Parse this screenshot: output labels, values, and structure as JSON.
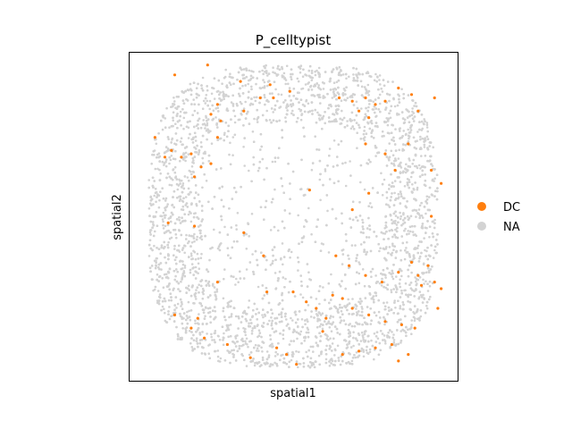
{
  "chart_data": {
    "type": "scatter",
    "title": "P_celltypist",
    "xlabel": "spatial1",
    "ylabel": "spatial2",
    "grid": false,
    "legend_placement": "right",
    "series": [
      {
        "name": "DC",
        "color": "#ff7f0e",
        "points": [
          [
            0.24,
            0.96
          ],
          [
            0.14,
            0.93
          ],
          [
            0.34,
            0.91
          ],
          [
            0.43,
            0.9
          ],
          [
            0.49,
            0.88
          ],
          [
            0.44,
            0.86
          ],
          [
            0.4,
            0.86
          ],
          [
            0.35,
            0.82
          ],
          [
            0.27,
            0.84
          ],
          [
            0.25,
            0.81
          ],
          [
            0.28,
            0.79
          ],
          [
            0.64,
            0.86
          ],
          [
            0.68,
            0.85
          ],
          [
            0.72,
            0.86
          ],
          [
            0.75,
            0.84
          ],
          [
            0.78,
            0.85
          ],
          [
            0.7,
            0.82
          ],
          [
            0.73,
            0.8
          ],
          [
            0.82,
            0.89
          ],
          [
            0.86,
            0.87
          ],
          [
            0.88,
            0.82
          ],
          [
            0.93,
            0.86
          ],
          [
            0.08,
            0.74
          ],
          [
            0.11,
            0.68
          ],
          [
            0.13,
            0.7
          ],
          [
            0.16,
            0.68
          ],
          [
            0.19,
            0.69
          ],
          [
            0.22,
            0.65
          ],
          [
            0.25,
            0.66
          ],
          [
            0.2,
            0.62
          ],
          [
            0.27,
            0.74
          ],
          [
            0.72,
            0.72
          ],
          [
            0.78,
            0.69
          ],
          [
            0.81,
            0.64
          ],
          [
            0.85,
            0.72
          ],
          [
            0.92,
            0.64
          ],
          [
            0.95,
            0.6
          ],
          [
            0.92,
            0.5
          ],
          [
            0.55,
            0.58
          ],
          [
            0.73,
            0.57
          ],
          [
            0.68,
            0.52
          ],
          [
            0.12,
            0.48
          ],
          [
            0.2,
            0.47
          ],
          [
            0.35,
            0.45
          ],
          [
            0.41,
            0.38
          ],
          [
            0.63,
            0.38
          ],
          [
            0.67,
            0.35
          ],
          [
            0.72,
            0.32
          ],
          [
            0.77,
            0.3
          ],
          [
            0.82,
            0.33
          ],
          [
            0.86,
            0.36
          ],
          [
            0.88,
            0.32
          ],
          [
            0.91,
            0.35
          ],
          [
            0.93,
            0.3
          ],
          [
            0.95,
            0.28
          ],
          [
            0.89,
            0.29
          ],
          [
            0.27,
            0.3
          ],
          [
            0.42,
            0.27
          ],
          [
            0.5,
            0.27
          ],
          [
            0.54,
            0.24
          ],
          [
            0.57,
            0.22
          ],
          [
            0.6,
            0.19
          ],
          [
            0.59,
            0.15
          ],
          [
            0.62,
            0.26
          ],
          [
            0.65,
            0.25
          ],
          [
            0.68,
            0.22
          ],
          [
            0.73,
            0.2
          ],
          [
            0.78,
            0.18
          ],
          [
            0.83,
            0.17
          ],
          [
            0.87,
            0.16
          ],
          [
            0.94,
            0.22
          ],
          [
            0.14,
            0.2
          ],
          [
            0.19,
            0.16
          ],
          [
            0.21,
            0.19
          ],
          [
            0.23,
            0.13
          ],
          [
            0.3,
            0.11
          ],
          [
            0.37,
            0.07
          ],
          [
            0.45,
            0.1
          ],
          [
            0.48,
            0.08
          ],
          [
            0.51,
            0.05
          ],
          [
            0.65,
            0.08
          ],
          [
            0.7,
            0.09
          ],
          [
            0.75,
            0.1
          ],
          [
            0.8,
            0.11
          ],
          [
            0.82,
            0.06
          ],
          [
            0.85,
            0.08
          ]
        ]
      },
      {
        "name": "NA",
        "color": "#d3d3d3"
      }
    ],
    "xlim": [
      0,
      1
    ],
    "ylim": [
      0,
      1
    ]
  }
}
